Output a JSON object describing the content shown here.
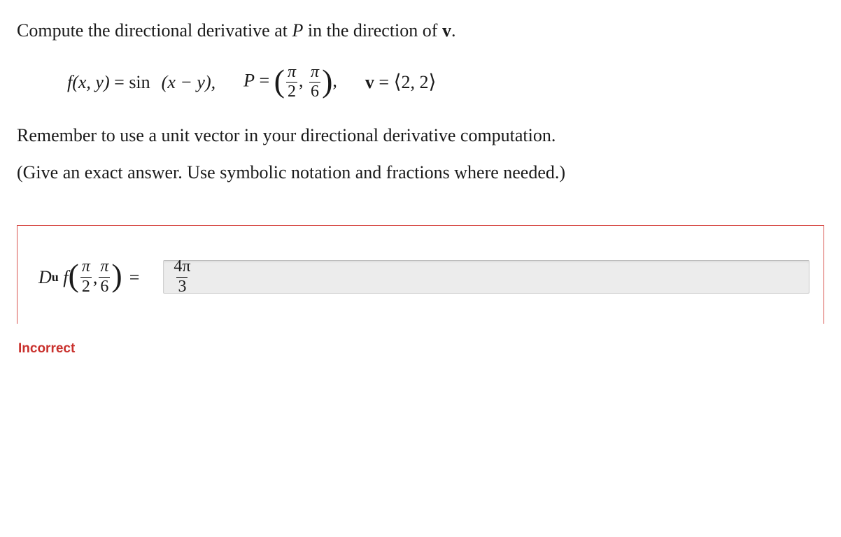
{
  "question": {
    "intro": "Compute the directional derivative at ",
    "point_var": "P",
    "intro2": " in the direction of ",
    "vec_var": "v",
    "period": "."
  },
  "formula": {
    "f_lhs_fname": "f",
    "f_lhs_args": "(x, y)",
    "equals": " = ",
    "sin": "sin",
    "sin_args": "(x − y),",
    "P_label": "P",
    "P_equals": " = ",
    "P_lp": "(",
    "P_x_num": "π",
    "P_x_den": "2",
    "P_comma": ",",
    "P_y_num": "π",
    "P_y_den": "6",
    "P_rp": ")",
    "P_trail": ",",
    "v_label": "v",
    "v_equals": " = ",
    "v_lang": "⟨",
    "v_vals": "2, 2",
    "v_rang": "⟩"
  },
  "note1": "Remember to use a unit vector in your directional derivative computation.",
  "note2": "(Give an exact answer. Use symbolic notation and fractions where needed.)",
  "answer": {
    "D": "D",
    "sub": "u",
    "fname": "f",
    "lp": "(",
    "ax_num": "π",
    "ax_den": "2",
    "comma": ",",
    "ay_num": "π",
    "ay_den": "6",
    "rp": ")",
    "eq": " = ",
    "val_num": "4π",
    "val_den": "3"
  },
  "status": "Incorrect",
  "colors": {
    "error": "#c9302c",
    "border": "#d9534f",
    "input_bg": "#ececec"
  }
}
